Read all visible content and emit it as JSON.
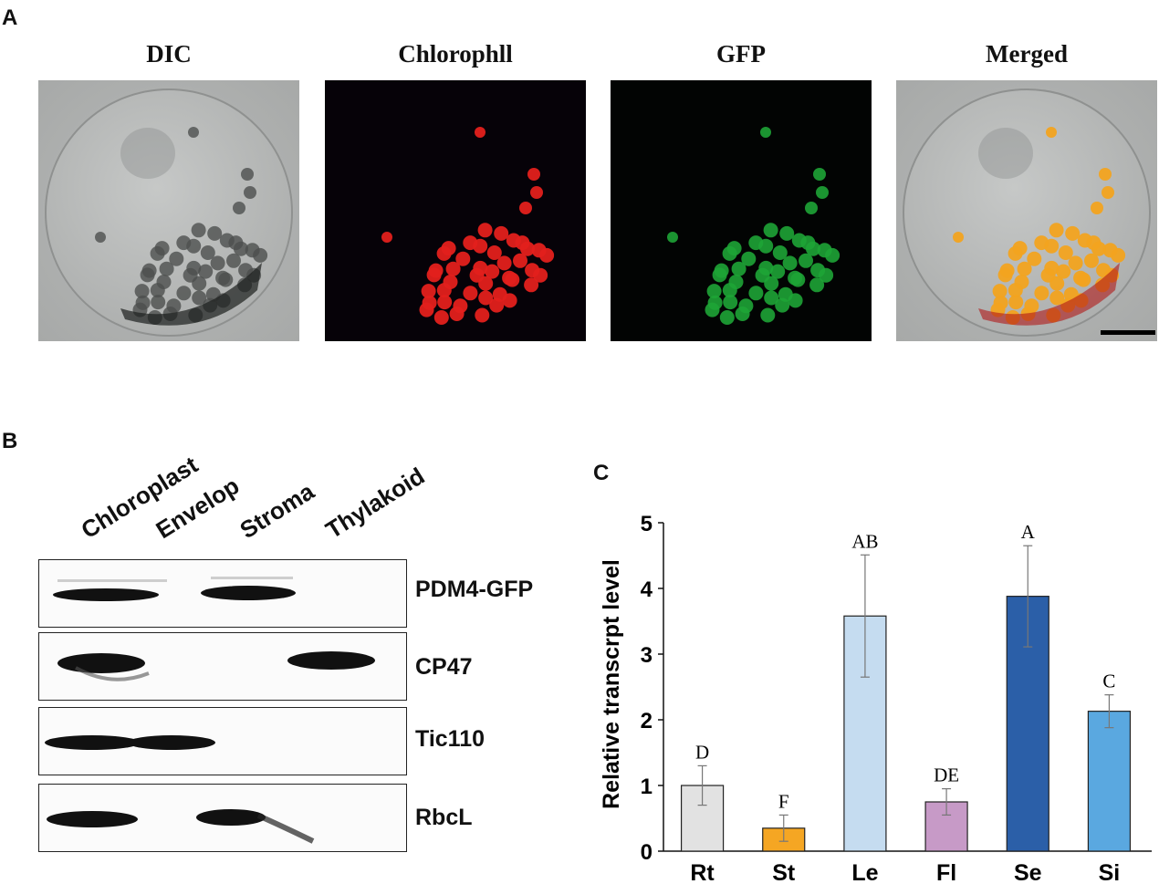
{
  "panel_a": {
    "letter": "A",
    "titles": [
      "DIC",
      "Chlorophll",
      "GFP",
      "Merged"
    ]
  },
  "panel_b": {
    "letter": "B",
    "lanes": [
      "Chloroplast",
      "Envelop",
      "Stroma",
      "Thylakoid"
    ],
    "blots": [
      {
        "label": "PDM4-GFP",
        "bands": [
          true,
          false,
          true,
          false
        ]
      },
      {
        "label": "CP47",
        "bands": [
          true,
          false,
          false,
          true
        ]
      },
      {
        "label": "Tic110",
        "bands": [
          true,
          true,
          false,
          false
        ]
      },
      {
        "label": "RbcL",
        "bands": [
          true,
          false,
          true,
          false
        ]
      }
    ]
  },
  "panel_c": {
    "letter": "C"
  },
  "chart_data": {
    "type": "bar",
    "title": "",
    "xlabel": "",
    "ylabel": "Relative transcrpt level",
    "ylim": [
      0,
      5
    ],
    "yticks": [
      "0",
      "1",
      "2",
      "3",
      "4",
      "5"
    ],
    "categories": [
      "Rt",
      "St",
      "Le",
      "Fl",
      "Se",
      "Si"
    ],
    "values": [
      1.0,
      0.35,
      3.58,
      0.75,
      3.88,
      2.13
    ],
    "errors": [
      0.3,
      0.2,
      0.93,
      0.2,
      0.77,
      0.25
    ],
    "significance": [
      "D",
      "F",
      "AB",
      "DE",
      "A",
      "C"
    ],
    "colors": [
      "#e2e2e2",
      "#f5a623",
      "#c5dcf0",
      "#c79ac7",
      "#2b5fa8",
      "#5aa8e0"
    ],
    "grid": false,
    "legend": "none"
  }
}
